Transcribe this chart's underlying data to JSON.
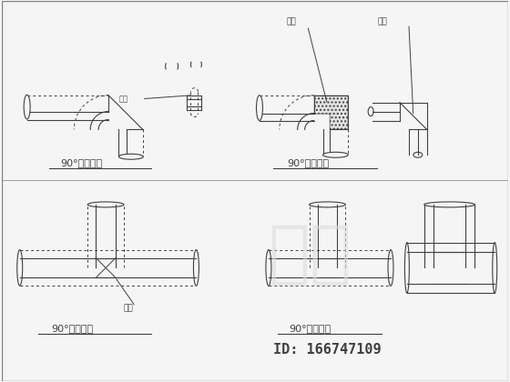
{
  "bg_color": "#f0f0f0",
  "line_color": "#404040",
  "title": "",
  "watermark_text": "知束",
  "watermark_color": "#cccccc",
  "id_text": "ID: 166747109",
  "labels": {
    "jiao_he": "胶合",
    "tian_liao": "填料",
    "top_left_title": "90°对焊弯头",
    "top_right_title": "90°牙口弯头",
    "bot_left_title": "90°对焊三通",
    "bot_right_title": "90°牙口三通"
  },
  "dot_color": "#555555",
  "fill_color": "#e8e8e8"
}
